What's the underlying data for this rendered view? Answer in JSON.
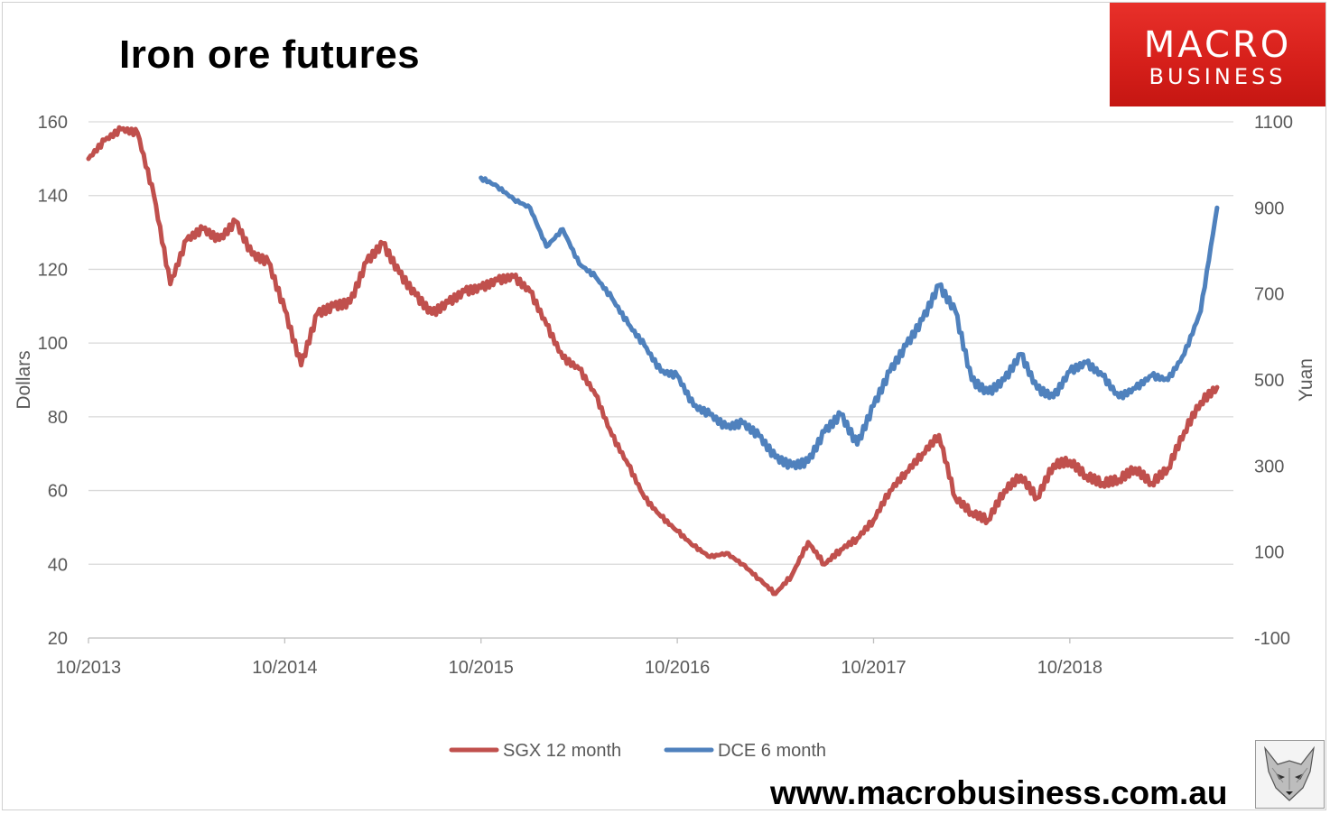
{
  "title": "Iron ore futures",
  "logo": {
    "line1": "MACRO",
    "line2": "BUSINESS"
  },
  "website": "www.macrobusiness.com.au",
  "colors": {
    "sgx": "#c0504d",
    "dce": "#4f81bd",
    "grid": "#d9d9d9",
    "logo_red": "#d7201b"
  },
  "chart_data": {
    "type": "line",
    "ylabel": "Dollars",
    "y2label": "Yuan",
    "ylim": [
      20,
      160
    ],
    "y2lim": [
      -100,
      1100
    ],
    "yticks": [
      "20",
      "40",
      "60",
      "80",
      "100",
      "120",
      "140",
      "160"
    ],
    "y2ticks": [
      "-100",
      "100",
      "300",
      "500",
      "700",
      "900",
      "1100"
    ],
    "xticks": [
      "10/2013",
      "10/2014",
      "10/2015",
      "10/2016",
      "10/2017",
      "10/2018"
    ],
    "xlim": [
      "2013-10",
      "2019-08"
    ],
    "grid": true,
    "legend_position": "bottom",
    "series": [
      {
        "name": "SGX 12 month",
        "axis": "left",
        "color": "#c0504d",
        "x": [
          "2013-10",
          "2013-11",
          "2013-12",
          "2014-01",
          "2014-02",
          "2014-03",
          "2014-04",
          "2014-05",
          "2014-06",
          "2014-07",
          "2014-08",
          "2014-09",
          "2014-10",
          "2014-11",
          "2014-12",
          "2015-01",
          "2015-02",
          "2015-03",
          "2015-04",
          "2015-05",
          "2015-06",
          "2015-07",
          "2015-08",
          "2015-09",
          "2015-10",
          "2015-11",
          "2015-12",
          "2016-01",
          "2016-02",
          "2016-03",
          "2016-04",
          "2016-05",
          "2016-06",
          "2016-07",
          "2016-08",
          "2016-09",
          "2016-10",
          "2016-11",
          "2016-12",
          "2017-01",
          "2017-02",
          "2017-03",
          "2017-04",
          "2017-05",
          "2017-06",
          "2017-07",
          "2017-08",
          "2017-09",
          "2017-10",
          "2017-11",
          "2017-12",
          "2018-01",
          "2018-02",
          "2018-03",
          "2018-04",
          "2018-05",
          "2018-06",
          "2018-07",
          "2018-08",
          "2018-09",
          "2018-10",
          "2018-11",
          "2018-12",
          "2019-01",
          "2019-02",
          "2019-03",
          "2019-04",
          "2019-05",
          "2019-06",
          "2019-07"
        ],
        "values": [
          150,
          155,
          158,
          157,
          140,
          116,
          128,
          131,
          128,
          133,
          124,
          122,
          109,
          94,
          108,
          110,
          111,
          122,
          127,
          119,
          113,
          108,
          111,
          114,
          115,
          117,
          118,
          114,
          105,
          96,
          93,
          86,
          75,
          67,
          58,
          53,
          49,
          45,
          42,
          43,
          40,
          36,
          32,
          37,
          46,
          40,
          44,
          47,
          52,
          60,
          65,
          70,
          75,
          58,
          54,
          52,
          60,
          64,
          58,
          67,
          68,
          64,
          62,
          63,
          66,
          62,
          66,
          76,
          84,
          88
        ]
      },
      {
        "name": "DCE 6 month",
        "axis": "right",
        "color": "#4f81bd",
        "x": [
          "2015-10",
          "2015-11",
          "2015-12",
          "2016-01",
          "2016-02",
          "2016-03",
          "2016-04",
          "2016-05",
          "2016-06",
          "2016-07",
          "2016-08",
          "2016-09",
          "2016-10",
          "2016-11",
          "2016-12",
          "2017-01",
          "2017-02",
          "2017-03",
          "2017-04",
          "2017-05",
          "2017-06",
          "2017-07",
          "2017-08",
          "2017-09",
          "2017-10",
          "2017-11",
          "2017-12",
          "2018-01",
          "2018-02",
          "2018-03",
          "2018-04",
          "2018-05",
          "2018-06",
          "2018-07",
          "2018-08",
          "2018-09",
          "2018-10",
          "2018-11",
          "2018-12",
          "2019-01",
          "2019-02",
          "2019-03",
          "2019-04",
          "2019-05",
          "2019-06",
          "2019-07"
        ],
        "values": [
          970,
          950,
          920,
          900,
          810,
          850,
          770,
          740,
          690,
          630,
          580,
          520,
          510,
          440,
          420,
          390,
          400,
          370,
          320,
          300,
          310,
          380,
          420,
          350,
          440,
          520,
          580,
          640,
          720,
          660,
          500,
          470,
          500,
          560,
          480,
          460,
          520,
          540,
          510,
          460,
          480,
          510,
          500,
          560,
          660,
          900
        ]
      }
    ]
  }
}
